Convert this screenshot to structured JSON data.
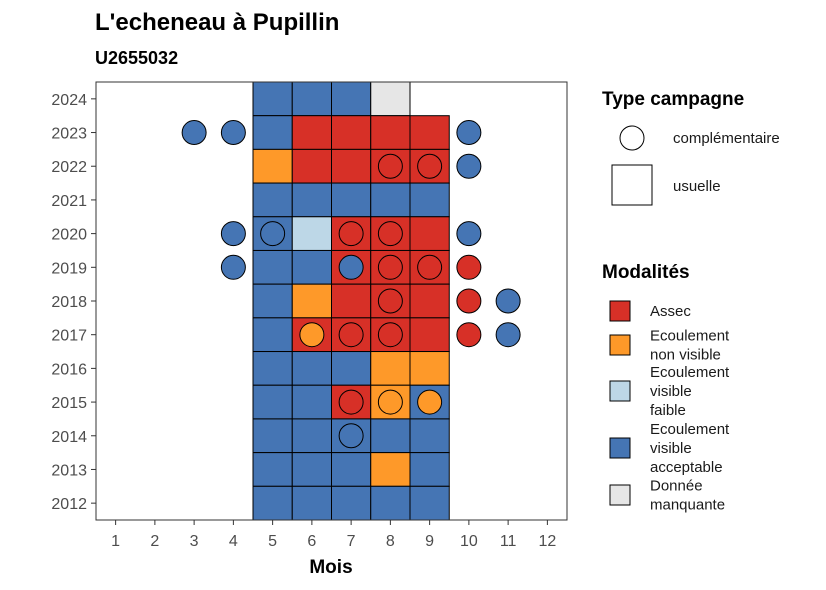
{
  "chart_data": {
    "type": "heatmap",
    "title": "L'echeneau à Pupillin",
    "subtitle": "U2655032",
    "xlabel": "Mois",
    "ylabel": "",
    "x_ticks": [
      1,
      2,
      3,
      4,
      5,
      6,
      7,
      8,
      9,
      10,
      11,
      12
    ],
    "y_ticks": [
      2012,
      2013,
      2014,
      2015,
      2016,
      2017,
      2018,
      2019,
      2020,
      2021,
      2022,
      2023,
      2024
    ],
    "xlim": [
      0.5,
      12.5
    ],
    "ylim": [
      2011.5,
      2024.5
    ],
    "modalities": [
      {
        "key": "A",
        "label_lines": [
          "Assec"
        ],
        "color": "#d73027"
      },
      {
        "key": "N",
        "label_lines": [
          "Ecoulement",
          "non visible"
        ],
        "color": "#fe9929"
      },
      {
        "key": "F",
        "label_lines": [
          "Ecoulement",
          "visible",
          "faible"
        ],
        "color": "#bdd7e7"
      },
      {
        "key": "V",
        "label_lines": [
          "Ecoulement",
          "visible",
          "acceptable"
        ],
        "color": "#4575b4"
      },
      {
        "key": "M",
        "label_lines": [
          "Donnée",
          "manquante"
        ],
        "color": "#e6e6e6"
      }
    ],
    "campaign_types": [
      {
        "key": "complementaire",
        "label": "complémentaire",
        "shape": "circle"
      },
      {
        "key": "usuelle",
        "label": "usuelle",
        "shape": "square"
      }
    ],
    "usuelle": [
      {
        "year": 2024,
        "values": {
          "5": "V",
          "6": "V",
          "7": "V",
          "8": "M"
        }
      },
      {
        "year": 2023,
        "values": {
          "5": "V",
          "6": "A",
          "7": "A",
          "8": "A",
          "9": "A"
        }
      },
      {
        "year": 2022,
        "values": {
          "5": "N",
          "6": "A",
          "7": "A",
          "8": "A",
          "9": "A"
        }
      },
      {
        "year": 2021,
        "values": {
          "5": "V",
          "6": "V",
          "7": "V",
          "8": "V",
          "9": "V"
        }
      },
      {
        "year": 2020,
        "values": {
          "5": "V",
          "6": "F",
          "7": "A",
          "8": "A",
          "9": "A"
        }
      },
      {
        "year": 2019,
        "values": {
          "5": "V",
          "6": "V",
          "7": "A",
          "8": "A",
          "9": "A"
        }
      },
      {
        "year": 2018,
        "values": {
          "5": "V",
          "6": "N",
          "7": "A",
          "8": "A",
          "9": "A"
        }
      },
      {
        "year": 2017,
        "values": {
          "5": "V",
          "6": "A",
          "7": "A",
          "8": "A",
          "9": "A"
        }
      },
      {
        "year": 2016,
        "values": {
          "5": "V",
          "6": "V",
          "7": "V",
          "8": "N",
          "9": "N"
        }
      },
      {
        "year": 2015,
        "values": {
          "5": "V",
          "6": "V",
          "7": "A",
          "8": "N",
          "9": "V"
        }
      },
      {
        "year": 2014,
        "values": {
          "5": "V",
          "6": "V",
          "7": "V",
          "8": "V",
          "9": "V"
        }
      },
      {
        "year": 2013,
        "values": {
          "5": "V",
          "6": "V",
          "7": "V",
          "8": "N",
          "9": "V"
        }
      },
      {
        "year": 2012,
        "values": {
          "5": "V",
          "6": "V",
          "7": "V",
          "8": "V",
          "9": "V"
        }
      }
    ],
    "complementaire": [
      {
        "year": 2023,
        "month": 3,
        "value": "V"
      },
      {
        "year": 2023,
        "month": 4,
        "value": "V"
      },
      {
        "year": 2023,
        "month": 10,
        "value": "V"
      },
      {
        "year": 2022,
        "month": 8,
        "value": "A"
      },
      {
        "year": 2022,
        "month": 9,
        "value": "A"
      },
      {
        "year": 2022,
        "month": 10,
        "value": "V"
      },
      {
        "year": 2020,
        "month": 4,
        "value": "V"
      },
      {
        "year": 2020,
        "month": 5,
        "value": "V"
      },
      {
        "year": 2020,
        "month": 7,
        "value": "A"
      },
      {
        "year": 2020,
        "month": 8,
        "value": "A"
      },
      {
        "year": 2020,
        "month": 10,
        "value": "V"
      },
      {
        "year": 2019,
        "month": 4,
        "value": "V"
      },
      {
        "year": 2019,
        "month": 7,
        "value": "V"
      },
      {
        "year": 2019,
        "month": 8,
        "value": "A"
      },
      {
        "year": 2019,
        "month": 9,
        "value": "A"
      },
      {
        "year": 2019,
        "month": 10,
        "value": "A"
      },
      {
        "year": 2018,
        "month": 8,
        "value": "A"
      },
      {
        "year": 2018,
        "month": 10,
        "value": "A"
      },
      {
        "year": 2018,
        "month": 11,
        "value": "V"
      },
      {
        "year": 2017,
        "month": 6,
        "value": "N"
      },
      {
        "year": 2017,
        "month": 7,
        "value": "A"
      },
      {
        "year": 2017,
        "month": 8,
        "value": "A"
      },
      {
        "year": 2017,
        "month": 10,
        "value": "A"
      },
      {
        "year": 2017,
        "month": 11,
        "value": "V"
      },
      {
        "year": 2015,
        "month": 7,
        "value": "A"
      },
      {
        "year": 2015,
        "month": 8,
        "value": "N"
      },
      {
        "year": 2015,
        "month": 9,
        "value": "N"
      },
      {
        "year": 2014,
        "month": 7,
        "value": "V"
      }
    ],
    "legend_position": "right"
  }
}
